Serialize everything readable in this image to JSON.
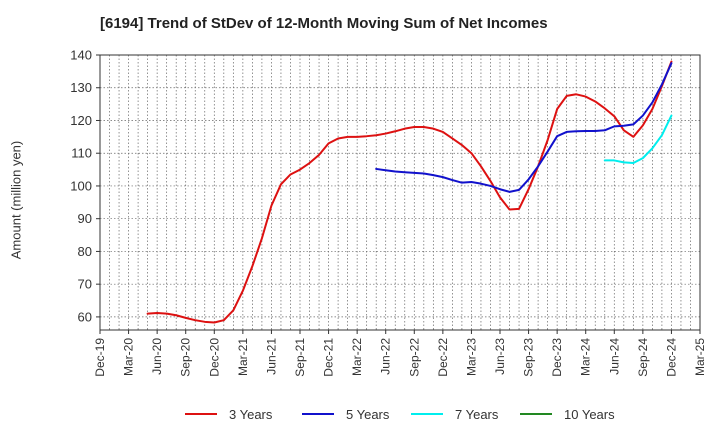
{
  "chart_data": {
    "type": "line",
    "title": "[6194]  Trend of StDev of 12-Month Moving Sum of Net Incomes",
    "xlabel": "",
    "ylabel": "Amount (million yen)",
    "ylim": [
      56,
      140
    ],
    "yticks": [
      60,
      70,
      80,
      90,
      100,
      110,
      120,
      130,
      140
    ],
    "x_tick_labels": [
      "Dec-19",
      "Mar-20",
      "Jun-20",
      "Sep-20",
      "Dec-20",
      "Mar-21",
      "Jun-21",
      "Sep-21",
      "Dec-21",
      "Mar-22",
      "Jun-22",
      "Sep-22",
      "Dec-22",
      "Mar-23",
      "Jun-23",
      "Sep-23",
      "Dec-23",
      "Mar-24",
      "Jun-24",
      "Sep-24",
      "Dec-24",
      "Mar-25"
    ],
    "x_start": "2019-12",
    "x_end": "2025-03",
    "grid": true,
    "legend_position": "bottom",
    "series": [
      {
        "name": "3 Years",
        "color": "#dd1111",
        "points": [
          [
            "2020-05",
            61.0
          ],
          [
            "2020-06",
            61.2
          ],
          [
            "2020-07",
            61.0
          ],
          [
            "2020-08",
            60.5
          ],
          [
            "2020-09",
            59.7
          ],
          [
            "2020-10",
            59.0
          ],
          [
            "2020-11",
            58.5
          ],
          [
            "2020-12",
            58.3
          ],
          [
            "2021-01",
            59.0
          ],
          [
            "2021-02",
            62.0
          ],
          [
            "2021-03",
            68.0
          ],
          [
            "2021-04",
            75.5
          ],
          [
            "2021-05",
            84.0
          ],
          [
            "2021-06",
            94.0
          ],
          [
            "2021-07",
            100.5
          ],
          [
            "2021-08",
            103.5
          ],
          [
            "2021-09",
            105.0
          ],
          [
            "2021-10",
            107.0
          ],
          [
            "2021-11",
            109.5
          ],
          [
            "2021-12",
            113.0
          ],
          [
            "2022-01",
            114.5
          ],
          [
            "2022-02",
            115.0
          ],
          [
            "2022-03",
            115.0
          ],
          [
            "2022-04",
            115.2
          ],
          [
            "2022-05",
            115.5
          ],
          [
            "2022-06",
            116.0
          ],
          [
            "2022-07",
            116.7
          ],
          [
            "2022-08",
            117.5
          ],
          [
            "2022-09",
            118.0
          ],
          [
            "2022-10",
            118.0
          ],
          [
            "2022-11",
            117.5
          ],
          [
            "2022-12",
            116.5
          ],
          [
            "2023-01",
            114.5
          ],
          [
            "2023-02",
            112.5
          ],
          [
            "2023-03",
            110.0
          ],
          [
            "2023-04",
            106.0
          ],
          [
            "2023-05",
            101.5
          ],
          [
            "2023-06",
            96.5
          ],
          [
            "2023-07",
            92.8
          ],
          [
            "2023-08",
            93.0
          ],
          [
            "2023-09",
            99.0
          ],
          [
            "2023-10",
            106.0
          ],
          [
            "2023-11",
            114.0
          ],
          [
            "2023-12",
            123.5
          ],
          [
            "2024-01",
            127.5
          ],
          [
            "2024-02",
            128.0
          ],
          [
            "2024-03",
            127.3
          ],
          [
            "2024-04",
            125.8
          ],
          [
            "2024-05",
            123.7
          ],
          [
            "2024-06",
            121.3
          ],
          [
            "2024-07",
            117.0
          ],
          [
            "2024-08",
            115.0
          ],
          [
            "2024-09",
            118.5
          ],
          [
            "2024-10",
            123.5
          ],
          [
            "2024-11",
            130.5
          ],
          [
            "2024-12",
            138.0
          ]
        ]
      },
      {
        "name": "5 Years",
        "color": "#1111cc",
        "points": [
          [
            "2022-05",
            105.2
          ],
          [
            "2022-06",
            104.8
          ],
          [
            "2022-07",
            104.4
          ],
          [
            "2022-08",
            104.2
          ],
          [
            "2022-09",
            104.0
          ],
          [
            "2022-10",
            103.8
          ],
          [
            "2022-11",
            103.3
          ],
          [
            "2022-12",
            102.7
          ],
          [
            "2023-01",
            101.8
          ],
          [
            "2023-02",
            101.0
          ],
          [
            "2023-03",
            101.2
          ],
          [
            "2023-04",
            100.7
          ],
          [
            "2023-05",
            100.0
          ],
          [
            "2023-06",
            99.0
          ],
          [
            "2023-07",
            98.2
          ],
          [
            "2023-08",
            98.8
          ],
          [
            "2023-09",
            102.0
          ],
          [
            "2023-10",
            106.0
          ],
          [
            "2023-11",
            110.5
          ],
          [
            "2023-12",
            115.2
          ],
          [
            "2024-01",
            116.5
          ],
          [
            "2024-02",
            116.7
          ],
          [
            "2024-03",
            116.8
          ],
          [
            "2024-04",
            116.8
          ],
          [
            "2024-05",
            117.0
          ],
          [
            "2024-06",
            118.2
          ],
          [
            "2024-07",
            118.4
          ],
          [
            "2024-08",
            118.8
          ],
          [
            "2024-09",
            121.5
          ],
          [
            "2024-10",
            125.5
          ],
          [
            "2024-11",
            131.0
          ],
          [
            "2024-12",
            137.5
          ]
        ]
      },
      {
        "name": "7 Years",
        "color": "#00eeee",
        "points": [
          [
            "2024-05",
            107.8
          ],
          [
            "2024-06",
            107.8
          ],
          [
            "2024-07",
            107.2
          ],
          [
            "2024-08",
            107.0
          ],
          [
            "2024-09",
            108.5
          ],
          [
            "2024-10",
            111.5
          ],
          [
            "2024-11",
            115.5
          ],
          [
            "2024-12",
            121.5
          ]
        ]
      },
      {
        "name": "10 Years",
        "color": "#228822",
        "points": []
      }
    ]
  }
}
